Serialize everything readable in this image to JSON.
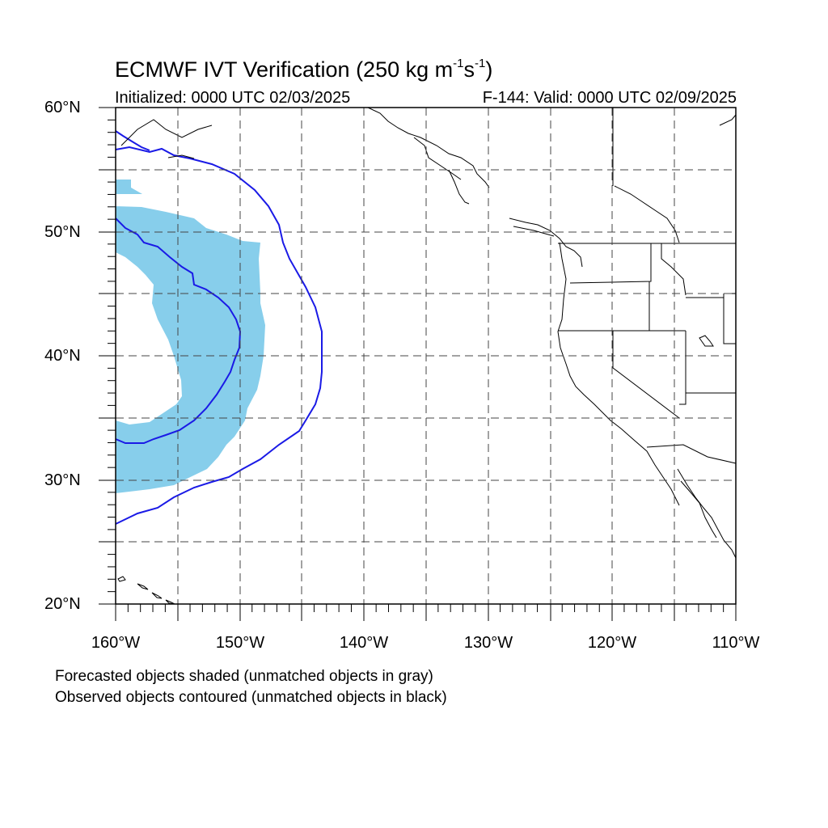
{
  "title": {
    "main": "ECMWF IVT Verification (250 kg m",
    "exp1": "-1",
    "mid": "s",
    "exp2": "-1",
    "end": ")"
  },
  "subtitle": {
    "initialized": "Initialized: 0000 UTC 02/03/2025",
    "valid": "F-144: Valid: 0000 UTC 02/09/2025"
  },
  "map": {
    "extent": {
      "lon": [
        -160,
        -110
      ],
      "lat": [
        20,
        60
      ]
    },
    "grid_interval_deg": 5,
    "lat_labels": [
      "60°N",
      "50°N",
      "40°N",
      "30°N",
      "20°N"
    ],
    "lon_labels": [
      "160°W",
      "150°W",
      "140°W",
      "130°W",
      "120°W",
      "110°W"
    ],
    "forecast_object_color": "#87ceeb",
    "observed_contour_color": "#1a1ae6"
  },
  "notes": {
    "line1": "Forecasted objects shaded (unmatched objects in gray)",
    "line2": "Observed objects contoured (unmatched objects in black)"
  }
}
